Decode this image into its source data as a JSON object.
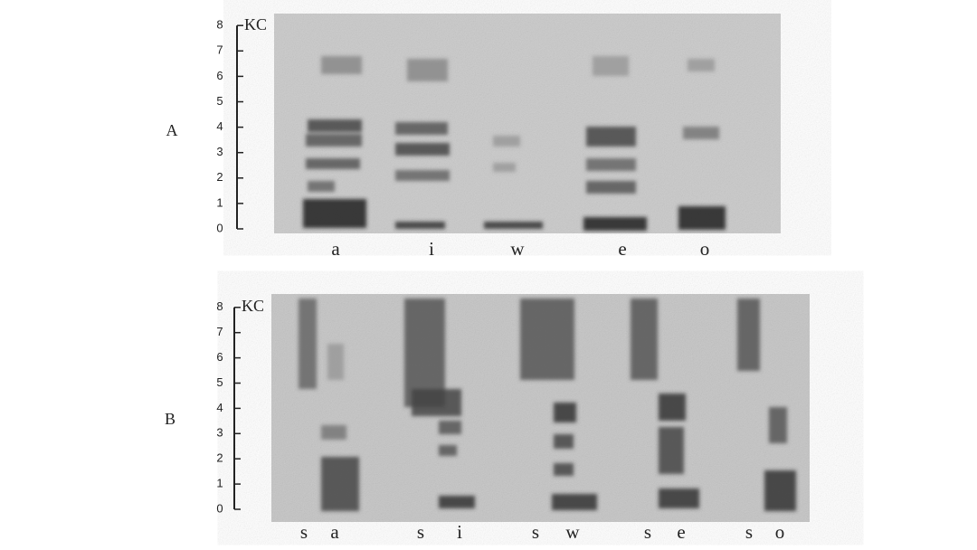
{
  "figure": {
    "panels": [
      {
        "label": "A",
        "unit": "KC",
        "yticks": [
          0,
          1,
          2,
          3,
          4,
          5,
          6,
          7,
          8
        ],
        "segments": [
          "a",
          "i",
          "w",
          "e",
          "o"
        ]
      },
      {
        "label": "B",
        "unit": "KC",
        "yticks": [
          0,
          1,
          2,
          3,
          4,
          5,
          6,
          7,
          8
        ],
        "segments": [
          "s",
          "a",
          "s",
          "i",
          "s",
          "w",
          "s",
          "e",
          "s",
          "o"
        ]
      }
    ]
  }
}
